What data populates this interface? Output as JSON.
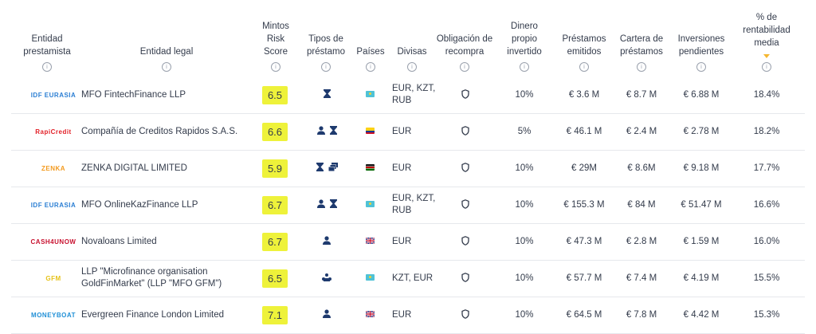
{
  "headers": {
    "entidad_prestamista": [
      "Entidad",
      "prestamista"
    ],
    "entidad_legal": [
      "Entidad legal"
    ],
    "mintos_risk_score": [
      "Mintos",
      "Risk",
      "Score"
    ],
    "tipos_prestamo": [
      "Tipos de",
      "préstamo"
    ],
    "paises": [
      "Países"
    ],
    "divisas": [
      "Divisas"
    ],
    "obligacion_recompra": [
      "Obligación de",
      "recompra"
    ],
    "dinero_propio": [
      "Dinero",
      "propio",
      "invertido"
    ],
    "prestamos_emitidos": [
      "Préstamos",
      "emitidos"
    ],
    "cartera_prestamos": [
      "Cartera de",
      "préstamos"
    ],
    "inversiones_pendientes": [
      "Inversiones",
      "pendientes"
    ],
    "rentabilidad_media": [
      "% de",
      "rentabilidad",
      "media"
    ]
  },
  "info_glyph": "i",
  "colors": {
    "score_bg": "#eef23a",
    "sort_arrow": "#f5b731",
    "icon": "#1e3a6e"
  },
  "rows": [
    {
      "logo": "IDF EURASIA",
      "logo_color": "#2a7ed3",
      "legal": "MFO FintechFinance LLP",
      "score": "6.5",
      "loan_icons": [
        "hourglass-icon"
      ],
      "flag": "kazakhstan",
      "currencies": "EUR, KZT, RUB",
      "own": "10%",
      "issued": "€ 3.6 M",
      "portfolio": "€ 8.7 M",
      "pending": "€ 6.88 M",
      "return": "18.4%"
    },
    {
      "logo": "RapiCredit",
      "logo_color": "#e21e26",
      "legal": "Compañía de Creditos Rapidos S.A.S.",
      "score": "6.6",
      "loan_icons": [
        "person-icon",
        "hourglass-icon"
      ],
      "flag": "colombia",
      "currencies": "EUR",
      "own": "5%",
      "issued": "€ 46.1 M",
      "portfolio": "€ 2.4 M",
      "pending": "€ 2.78 M",
      "return": "18.2%"
    },
    {
      "logo": "ZENKA",
      "logo_color": "#f39a1e",
      "legal": "ZENKA DIGITAL LIMITED",
      "score": "5.9",
      "loan_icons": [
        "hourglass-icon",
        "cards-icon"
      ],
      "flag": "kenya",
      "currencies": "EUR",
      "own": "10%",
      "issued": "€ 29M",
      "portfolio": "€ 8.6M",
      "pending": "€ 9.18 M",
      "return": "17.7%"
    },
    {
      "logo": "IDF EURASIA",
      "logo_color": "#2a7ed3",
      "legal": "MFO OnlineKazFinance LLP",
      "score": "6.7",
      "loan_icons": [
        "person-icon",
        "hourglass-icon"
      ],
      "flag": "kazakhstan",
      "currencies": "EUR, KZT, RUB",
      "own": "10%",
      "issued": "€ 155.3 M",
      "portfolio": "€ 84 M",
      "pending": "€ 51.47 M",
      "return": "16.6%"
    },
    {
      "logo": "CASH4UNOW",
      "logo_color": "#c8102e",
      "legal": "Novaloans Limited",
      "score": "6.7",
      "loan_icons": [
        "person-icon"
      ],
      "flag": "uk",
      "currencies": "EUR",
      "own": "10%",
      "issued": "€ 47.3 M",
      "portfolio": "€ 2.8 M",
      "pending": "€ 1.59 M",
      "return": "16.0%"
    },
    {
      "logo": "GFM",
      "logo_color": "#e6c219",
      "legal": "LLP \"Microfinance organisation GoldFinMarket\" (LLP \"MFO GFM\")",
      "score": "6.5",
      "loan_icons": [
        "business-icon"
      ],
      "flag": "kazakhstan",
      "currencies": "KZT, EUR",
      "own": "10%",
      "issued": "€ 57.7 M",
      "portfolio": "€ 7.4 M",
      "pending": "€ 4.19 M",
      "return": "15.5%"
    },
    {
      "logo": "MONEYBOAT",
      "logo_color": "#1f8fd6",
      "legal": "Evergreen Finance London Limited",
      "score": "7.1",
      "loan_icons": [
        "person-icon"
      ],
      "flag": "uk",
      "currencies": "EUR",
      "own": "10%",
      "issued": "€ 64.5 M",
      "portfolio": "€ 7.8 M",
      "pending": "€ 4.42 M",
      "return": "15.3%"
    }
  ]
}
